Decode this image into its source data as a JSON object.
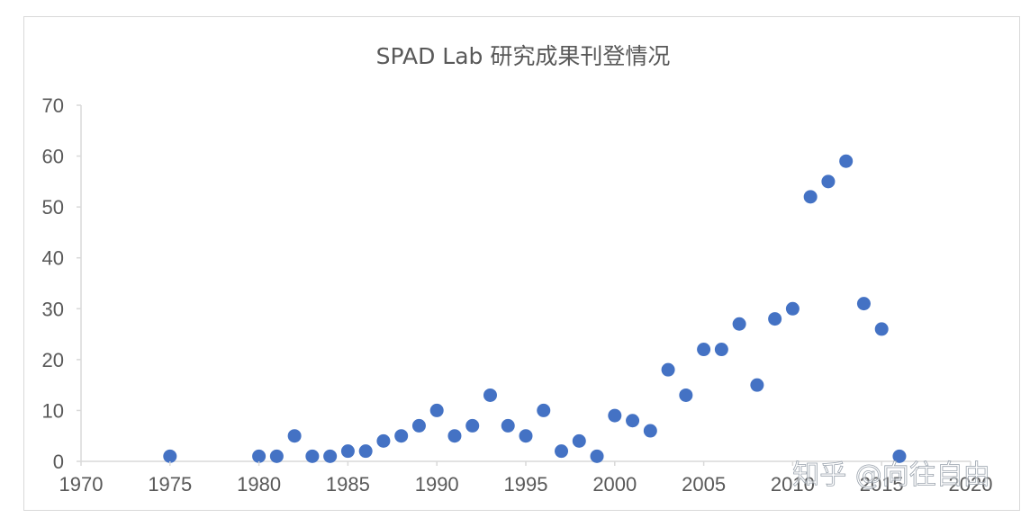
{
  "chart_data": {
    "type": "scatter",
    "title": "SPAD Lab 研究成果刊登情况",
    "xlabel": "",
    "ylabel": "",
    "xlim": [
      1970,
      2020
    ],
    "ylim": [
      0,
      70
    ],
    "x_ticks": [
      1970,
      1975,
      1980,
      1985,
      1990,
      1995,
      2000,
      2005,
      2010,
      2015,
      2020
    ],
    "y_ticks": [
      0,
      10,
      20,
      30,
      40,
      50,
      60,
      70
    ],
    "grid": false,
    "legend": "none",
    "series": [
      {
        "color": "#4472c4",
        "points": [
          [
            1975,
            1
          ],
          [
            1980,
            1
          ],
          [
            1981,
            1
          ],
          [
            1982,
            5
          ],
          [
            1983,
            1
          ],
          [
            1984,
            1
          ],
          [
            1985,
            2
          ],
          [
            1986,
            2
          ],
          [
            1987,
            4
          ],
          [
            1988,
            5
          ],
          [
            1989,
            7
          ],
          [
            1990,
            10
          ],
          [
            1991,
            5
          ],
          [
            1992,
            7
          ],
          [
            1993,
            13
          ],
          [
            1994,
            7
          ],
          [
            1995,
            5
          ],
          [
            1996,
            10
          ],
          [
            1997,
            2
          ],
          [
            1998,
            4
          ],
          [
            1999,
            1
          ],
          [
            2000,
            9
          ],
          [
            2001,
            8
          ],
          [
            2002,
            6
          ],
          [
            2003,
            18
          ],
          [
            2004,
            13
          ],
          [
            2005,
            22
          ],
          [
            2006,
            22
          ],
          [
            2007,
            27
          ],
          [
            2008,
            15
          ],
          [
            2009,
            28
          ],
          [
            2010,
            30
          ],
          [
            2011,
            52
          ],
          [
            2012,
            55
          ],
          [
            2013,
            59
          ],
          [
            2014,
            31
          ],
          [
            2015,
            26
          ],
          [
            2016,
            1
          ]
        ]
      }
    ]
  },
  "watermark": {
    "text": "知乎 @向往自由"
  }
}
